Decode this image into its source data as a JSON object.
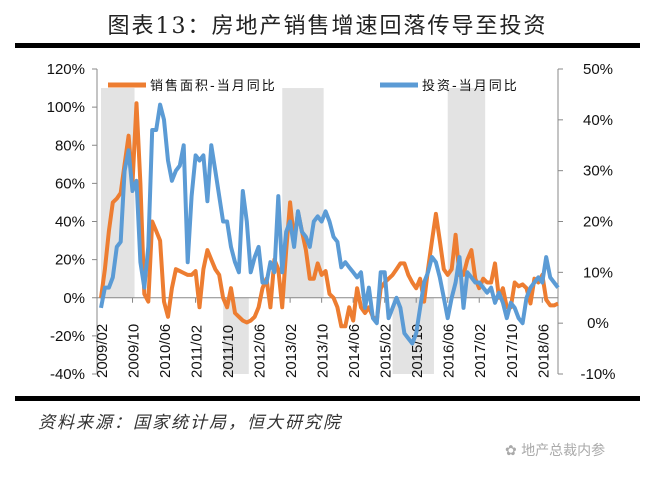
{
  "title": "图表13：房地产销售增速回落传导至投资",
  "source": "资料来源：国家统计局，恒大研究院",
  "watermark": "地产总裁内参",
  "chart_data": {
    "type": "line",
    "title": "图表13：房地产销售增速回落传导至投资",
    "start_month": "2009/02",
    "x_tick_labels": [
      "2009/02",
      "2009/10",
      "2010/06",
      "2011/02",
      "2011/10",
      "2012/06",
      "2013/02",
      "2013/10",
      "2014/06",
      "2015/02",
      "2015/10",
      "2016/06",
      "2017/02",
      "2017/10",
      "2018/06"
    ],
    "left_axis": {
      "ylim": [
        -40,
        120
      ],
      "ticks": [
        "-40%",
        "-20%",
        "0%",
        "20%",
        "40%",
        "60%",
        "80%",
        "100%",
        "120%"
      ]
    },
    "right_axis": {
      "ylim": [
        -10,
        50
      ],
      "ticks": [
        "-10%",
        "0%",
        "10%",
        "20%",
        "30%",
        "40%",
        "50%"
      ]
    },
    "legend_position": "top",
    "series": [
      {
        "name": "销售面积-当月同比",
        "axis": "left",
        "color": "#ED7D31",
        "values": [
          0,
          15,
          35,
          50,
          52,
          55,
          70,
          85,
          60,
          102,
          60,
          2,
          -2,
          40,
          35,
          30,
          -2,
          -10,
          5,
          15,
          14,
          13,
          12,
          12,
          14,
          -5,
          15,
          25,
          20,
          15,
          12,
          0,
          -5,
          5,
          -8,
          -10,
          -12,
          -13,
          -12,
          -10,
          -5,
          5,
          10,
          -5,
          20,
          15,
          -5,
          25,
          50,
          30,
          45,
          35,
          25,
          10,
          10,
          18,
          12,
          14,
          2,
          0,
          -5,
          -15,
          -15,
          -5,
          -12,
          5,
          -5,
          -8,
          -5,
          -10,
          -12,
          5,
          8,
          10,
          12,
          15,
          18,
          18,
          12,
          8,
          5,
          10,
          -2,
          15,
          30,
          44,
          30,
          15,
          12,
          15,
          33,
          12,
          12,
          20,
          25,
          10,
          5,
          10,
          8,
          8,
          18,
          0,
          5,
          -5,
          -5,
          8,
          6,
          7,
          5,
          -3,
          10,
          8,
          12,
          -1,
          -4,
          -4,
          -3
        ]
      },
      {
        "name": "投资-当月同比",
        "axis": "right",
        "color": "#5B9BD5",
        "values": [
          3,
          7,
          7,
          9,
          15,
          16,
          30,
          34,
          26,
          28,
          12,
          7,
          15,
          38,
          38,
          43,
          40,
          32,
          28,
          30,
          31,
          35,
          12,
          25,
          33,
          32,
          33,
          24,
          35,
          30,
          25,
          20,
          20,
          15,
          12,
          10,
          26,
          20,
          10,
          13,
          15,
          8,
          8,
          12,
          10,
          25,
          10,
          18,
          20,
          15,
          22,
          18,
          17,
          15,
          20,
          21,
          20,
          22,
          20,
          17,
          16,
          11,
          12,
          11,
          10,
          9,
          10,
          3,
          7,
          1,
          0,
          10,
          10,
          1,
          3,
          5,
          3,
          -2,
          -3,
          -4,
          -2,
          3,
          8,
          10,
          13,
          12,
          9,
          5,
          1,
          5,
          8,
          13,
          3,
          10,
          9,
          8,
          8,
          7,
          6,
          7,
          4,
          6,
          4,
          1,
          4,
          3,
          1,
          0,
          5,
          7,
          8,
          9,
          8,
          13,
          9,
          8,
          7
        ]
      }
    ],
    "shaded_periods": [
      {
        "from": 0,
        "to": 8,
        "direction": "up"
      },
      {
        "from": 31,
        "to": 37,
        "direction": "down"
      },
      {
        "from": 46,
        "to": 56,
        "direction": "up"
      },
      {
        "from": 74,
        "to": 84,
        "direction": "down"
      },
      {
        "from": 88,
        "to": 97,
        "direction": "up"
      }
    ],
    "shading_color": "#E3E3E3"
  }
}
